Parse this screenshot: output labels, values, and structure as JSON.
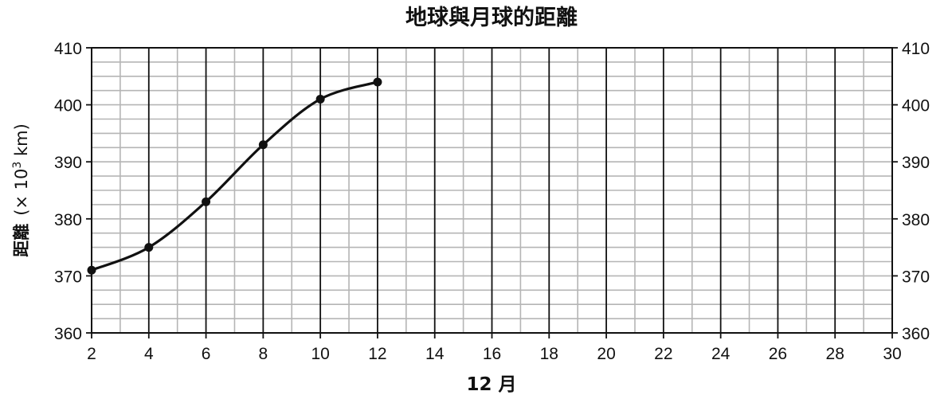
{
  "chart_data": {
    "type": "line",
    "title": "地球與月球的距離",
    "xlabel": "12 月",
    "ylabel_main": "距離",
    "ylabel_unit_prefix": "(× 10",
    "ylabel_unit_exp": "3",
    "ylabel_unit_suffix": " km)",
    "xlim": [
      2,
      30
    ],
    "ylim": [
      360,
      410
    ],
    "x_ticks": [
      2,
      4,
      6,
      8,
      10,
      12,
      14,
      16,
      18,
      20,
      22,
      24,
      26,
      28,
      30
    ],
    "y_ticks": [
      360,
      370,
      380,
      390,
      400,
      410
    ],
    "minor_x_step": 1,
    "minor_y_step": 2.5,
    "y_axis_both_sides": true,
    "grid": true,
    "series": [
      {
        "x": [
          2,
          4,
          6,
          8,
          10,
          12
        ],
        "y": [
          371,
          375,
          383,
          393,
          401,
          404
        ]
      }
    ],
    "colors": {
      "line": "#111111",
      "major_grid": "#111111",
      "minor_grid": "#b5b5b5"
    }
  }
}
